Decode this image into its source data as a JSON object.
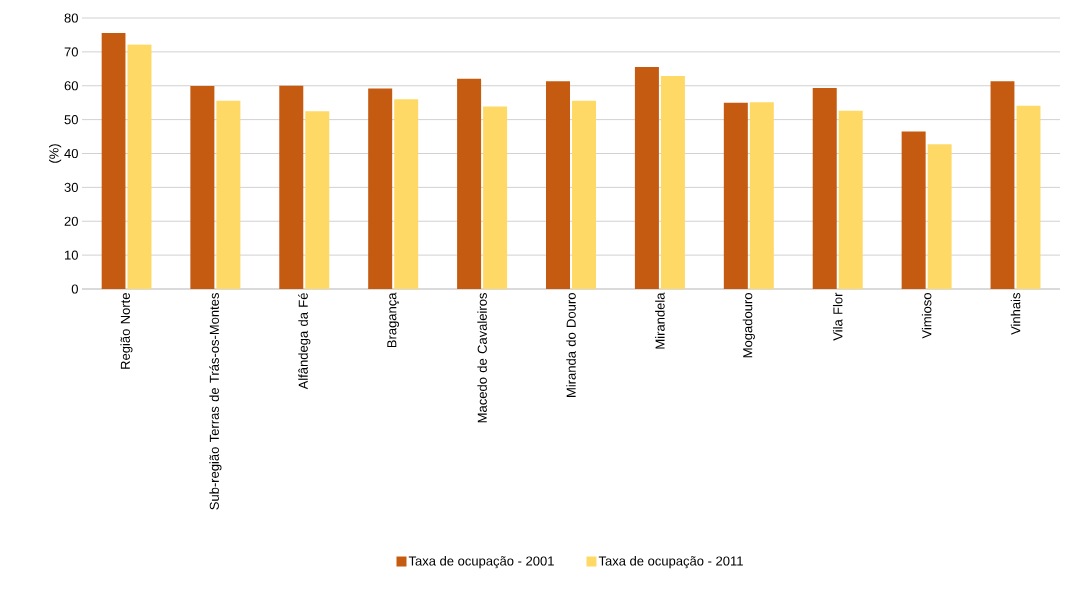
{
  "chart_data": {
    "type": "bar",
    "ylabel": "(%)",
    "categories": [
      "Região Norte",
      "Sub-região Terras de Trás-os-Montes",
      "Alfândega da Fé",
      "Bragança",
      "Macedo de Cavaleiros",
      "Miranda do Douro",
      "Mirandela",
      "Mogadouro",
      "Vila Flor",
      "Vimioso",
      "Vinhais"
    ],
    "series": [
      {
        "name": "Taxa de ocupação - 2001",
        "color": "#c55a11",
        "values": [
          75.6,
          59.9,
          60.0,
          59.2,
          62.1,
          61.3,
          65.5,
          55.0,
          59.3,
          46.5,
          61.3
        ]
      },
      {
        "name": "Taxa de ocupação - 2011",
        "color": "#ffd966",
        "values": [
          72.2,
          55.6,
          52.5,
          56.0,
          53.9,
          55.6,
          62.9,
          55.1,
          52.6,
          42.7,
          54.1
        ]
      }
    ],
    "ylim": [
      0,
      80
    ],
    "yticks": [
      0,
      10,
      20,
      30,
      40,
      50,
      60,
      70,
      80
    ],
    "grid": "y",
    "legend": "bottom"
  }
}
